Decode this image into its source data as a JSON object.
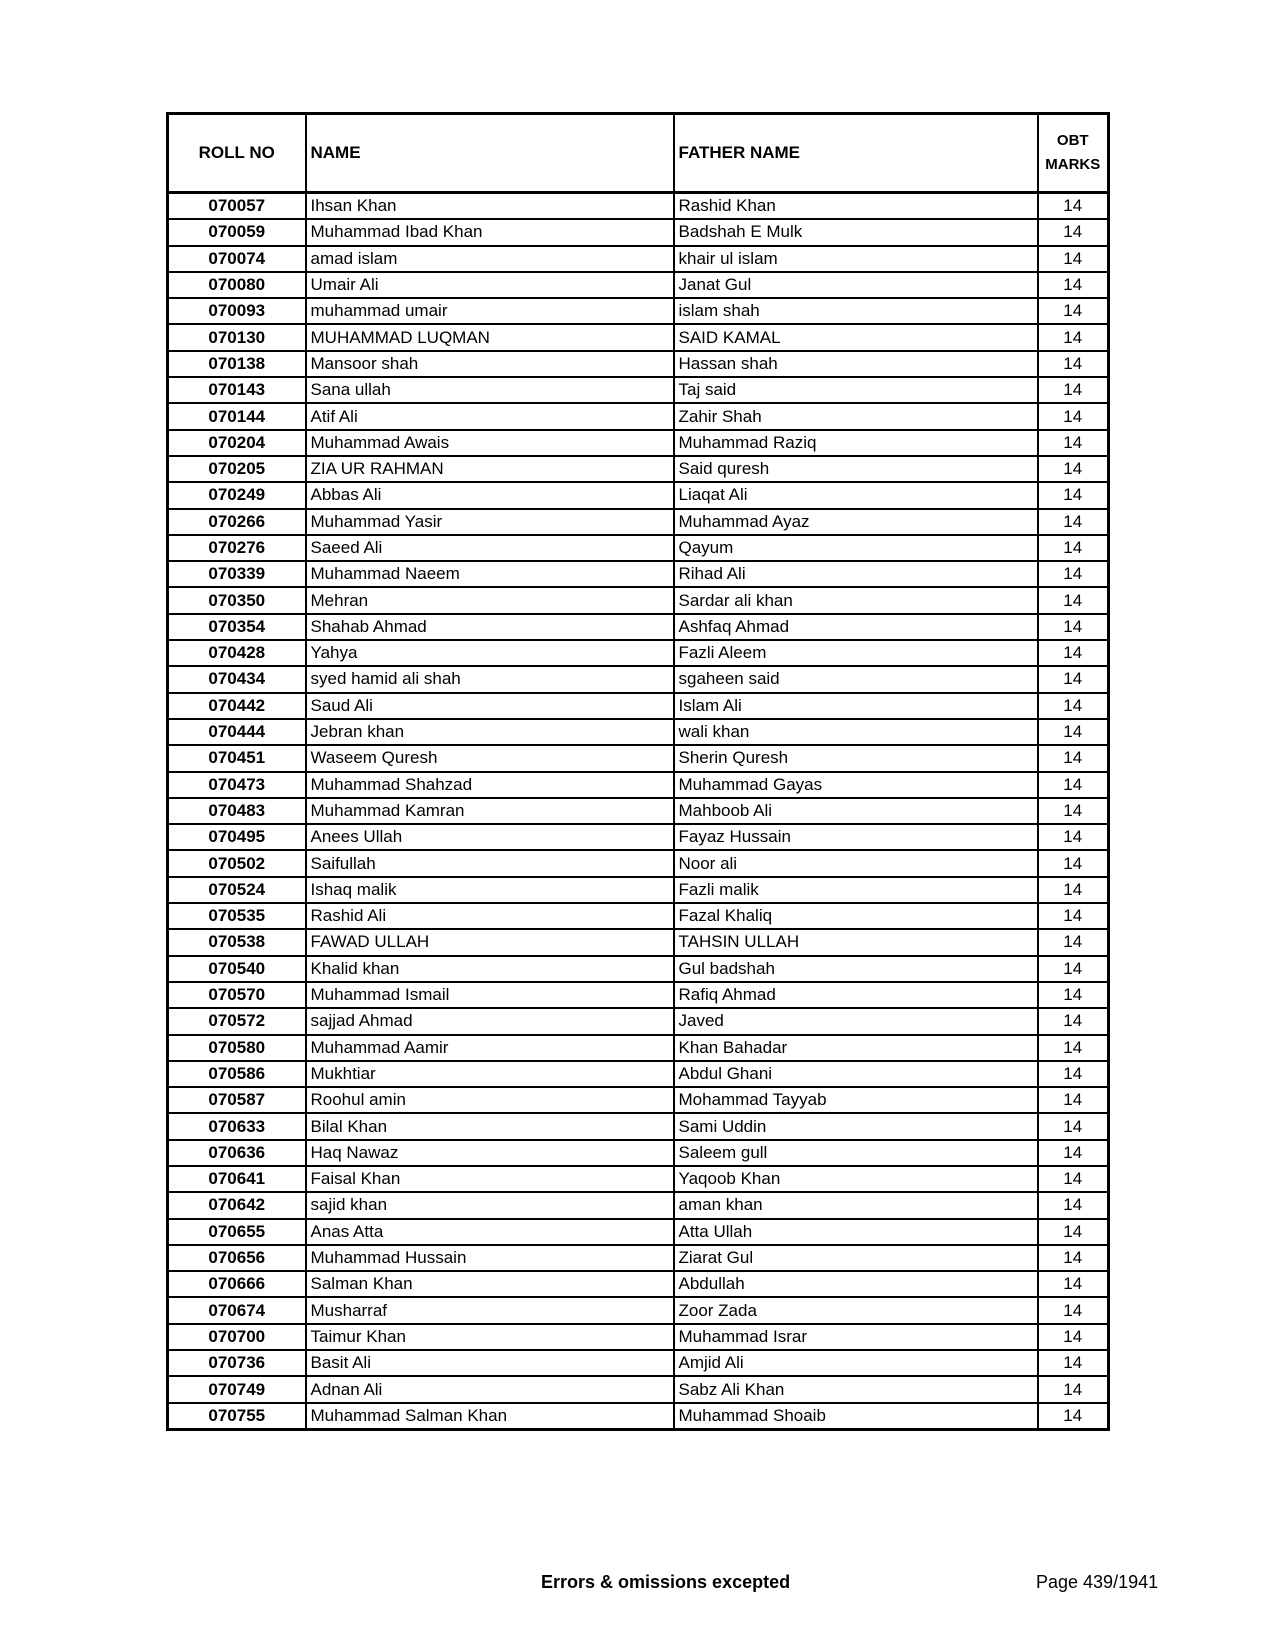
{
  "table": {
    "headers": {
      "roll": "ROLL NO",
      "name": "NAME",
      "father": "FATHER NAME",
      "marks_line1": "OBT",
      "marks_line2": "MARKS"
    },
    "rows": [
      [
        "070057",
        "Ihsan Khan",
        "Rashid Khan",
        "14"
      ],
      [
        "070059",
        "Muhammad Ibad Khan",
        "Badshah E Mulk",
        "14"
      ],
      [
        "070074",
        "amad islam",
        "khair ul islam",
        "14"
      ],
      [
        "070080",
        "Umair Ali",
        "Janat Gul",
        "14"
      ],
      [
        "070093",
        "muhammad umair",
        "islam shah",
        "14"
      ],
      [
        "070130",
        "MUHAMMAD LUQMAN",
        "SAID KAMAL",
        "14"
      ],
      [
        "070138",
        "Mansoor shah",
        "Hassan shah",
        "14"
      ],
      [
        "070143",
        "Sana ullah",
        "Taj said",
        "14"
      ],
      [
        "070144",
        "Atif Ali",
        "Zahir Shah",
        "14"
      ],
      [
        "070204",
        "Muhammad Awais",
        "Muhammad Raziq",
        "14"
      ],
      [
        "070205",
        "ZIA UR RAHMAN",
        "Said quresh",
        "14"
      ],
      [
        "070249",
        "Abbas Ali",
        "Liaqat Ali",
        "14"
      ],
      [
        "070266",
        "Muhammad Yasir",
        "Muhammad Ayaz",
        "14"
      ],
      [
        "070276",
        "Saeed Ali",
        "Qayum",
        "14"
      ],
      [
        "070339",
        "Muhammad Naeem",
        "Rihad Ali",
        "14"
      ],
      [
        "070350",
        "Mehran",
        "Sardar ali khan",
        "14"
      ],
      [
        "070354",
        "Shahab Ahmad",
        "Ashfaq Ahmad",
        "14"
      ],
      [
        "070428",
        "Yahya",
        "Fazli Aleem",
        "14"
      ],
      [
        "070434",
        "syed hamid ali shah",
        "sgaheen said",
        "14"
      ],
      [
        "070442",
        "Saud Ali",
        "Islam Ali",
        "14"
      ],
      [
        "070444",
        "Jebran khan",
        "wali khan",
        "14"
      ],
      [
        "070451",
        "Waseem Quresh",
        "Sherin Quresh",
        "14"
      ],
      [
        "070473",
        "Muhammad Shahzad",
        "Muhammad Gayas",
        "14"
      ],
      [
        "070483",
        "Muhammad Kamran",
        "Mahboob Ali",
        "14"
      ],
      [
        "070495",
        "Anees Ullah",
        "Fayaz Hussain",
        "14"
      ],
      [
        "070502",
        "Saifullah",
        "Noor ali",
        "14"
      ],
      [
        "070524",
        "Ishaq malik",
        "Fazli malik",
        "14"
      ],
      [
        "070535",
        "Rashid Ali",
        "Fazal Khaliq",
        "14"
      ],
      [
        "070538",
        "FAWAD ULLAH",
        "TAHSIN ULLAH",
        "14"
      ],
      [
        "070540",
        "Khalid khan",
        "Gul badshah",
        "14"
      ],
      [
        "070570",
        "Muhammad Ismail",
        "Rafiq Ahmad",
        "14"
      ],
      [
        "070572",
        "sajjad Ahmad",
        "Javed",
        "14"
      ],
      [
        "070580",
        "Muhammad Aamir",
        "Khan Bahadar",
        "14"
      ],
      [
        "070586",
        "Mukhtiar",
        "Abdul Ghani",
        "14"
      ],
      [
        "070587",
        "Roohul amin",
        "Mohammad Tayyab",
        "14"
      ],
      [
        "070633",
        "Bilal Khan",
        "Sami Uddin",
        "14"
      ],
      [
        "070636",
        "Haq Nawaz",
        "Saleem gull",
        "14"
      ],
      [
        "070641",
        "Faisal Khan",
        "Yaqoob Khan",
        "14"
      ],
      [
        "070642",
        "sajid khan",
        "aman khan",
        "14"
      ],
      [
        "070655",
        "Anas Atta",
        "Atta Ullah",
        "14"
      ],
      [
        "070656",
        "Muhammad Hussain",
        "Ziarat Gul",
        "14"
      ],
      [
        "070666",
        "Salman Khan",
        "Abdullah",
        "14"
      ],
      [
        "070674",
        "Musharraf",
        "Zoor Zada",
        "14"
      ],
      [
        "070700",
        "Taimur Khan",
        "Muhammad Israr",
        "14"
      ],
      [
        "070736",
        "Basit Ali",
        "Amjid Ali",
        "14"
      ],
      [
        "070749",
        "Adnan Ali",
        "Sabz Ali Khan",
        "14"
      ],
      [
        "070755",
        "Muhammad Salman Khan",
        "Muhammad Shoaib",
        "14"
      ]
    ]
  },
  "footer": {
    "note": "Errors & omissions excepted",
    "page": "Page 439/1941"
  }
}
